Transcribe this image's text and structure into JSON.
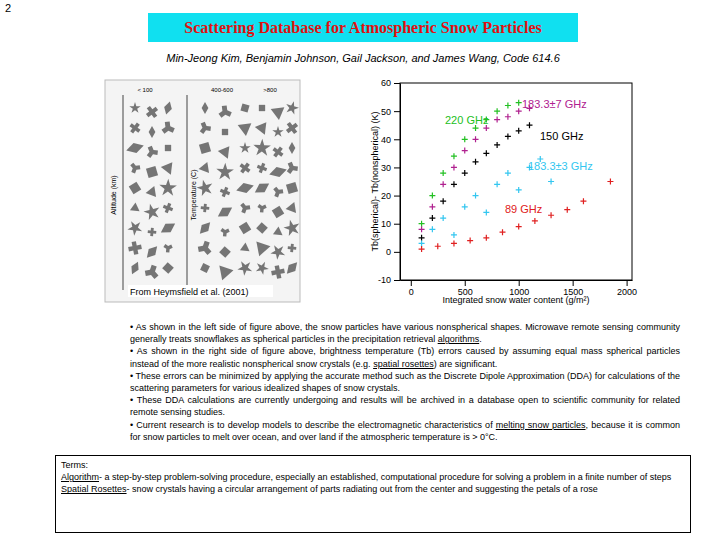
{
  "page_number": "2",
  "header": {
    "title": "Scattering Database for Atmospheric Snow Particles",
    "authors": "Min-Jeong Kim, Benjamin Johnson, Gail Jackson, and James Wang, Code 614.6"
  },
  "figure_left": {
    "column_labels": [
      "< 100",
      "400-600",
      ">800"
    ],
    "y_label": "Altitude (km)",
    "y2_label": "Temperature (C)",
    "caption": "From Heymsfield et al. (2001)"
  },
  "chart_data": {
    "type": "scatter",
    "x_label": "Integrated snow water content (g/m²)",
    "y_label": "Tb(spherical)- Tb(nonspherical) (K)",
    "xlim": [
      -100,
      2050
    ],
    "ylim": [
      -10,
      60
    ],
    "xticks": [
      0,
      500,
      1000,
      1500,
      2000
    ],
    "yticks": [
      -10,
      0,
      10,
      20,
      30,
      40,
      50,
      60
    ],
    "grid": false,
    "marker": "plus",
    "series": [
      {
        "name": "220 GHz",
        "color": "#22c022",
        "x": [
          100,
          200,
          300,
          400,
          500,
          600,
          700,
          800,
          900,
          1000
        ],
        "values": [
          10,
          20,
          28,
          34,
          40,
          44,
          47,
          50,
          52,
          53
        ]
      },
      {
        "name": "183.3±7 GHz",
        "color": "#b0208f",
        "x": [
          100,
          200,
          300,
          400,
          500,
          600,
          700,
          800,
          900,
          1000,
          1100
        ],
        "values": [
          8,
          16,
          24,
          30,
          36,
          40,
          44,
          47,
          48,
          50,
          51
        ]
      },
      {
        "name": "150 GHz",
        "color": "#000000",
        "x": [
          100,
          200,
          300,
          400,
          500,
          600,
          700,
          800,
          900,
          1000,
          1100
        ],
        "values": [
          5,
          12,
          18,
          24,
          28,
          32,
          35,
          38,
          41,
          43,
          45
        ]
      },
      {
        "name": "183.3±3 GHz",
        "color": "#33c6f0",
        "x": [
          100,
          200,
          300,
          400,
          500,
          600,
          700,
          800,
          900,
          1000,
          1100,
          1200,
          1300
        ],
        "values": [
          3,
          8,
          12,
          6,
          16,
          20,
          14,
          24,
          28,
          22,
          30,
          33,
          25
        ]
      },
      {
        "name": "89 GHz",
        "color": "#e02020",
        "x": [
          100,
          250,
          400,
          550,
          700,
          850,
          1000,
          1150,
          1300,
          1450,
          1600,
          1850
        ],
        "values": [
          1,
          2,
          3,
          4,
          5,
          7,
          9,
          11,
          13,
          15,
          18,
          25
        ]
      }
    ]
  },
  "bullets": [
    [
      "• As shown in the left side of figure above, the snow particles have various nonspherical shapes. Microwave remote sensing community generally treats snowflakes as spherical particles in the precipitation retrieval ",
      {
        "underlined": "algorithms"
      },
      "."
    ],
    [
      "• As shown in the right side of figure above, brightness temperature (Tb) errors caused by assuming equal mass spherical particles instead of the more realistic nonspherical snow crystals (e.g. ",
      {
        "underlined": "spatial rosettes"
      },
      ") are significant."
    ],
    [
      "• These errors can be minimized by applying the accurate method such as the Discrete Dipole Approximation (DDA) for calculations of the scattering parameters for various idealized shapes of snow crystals."
    ],
    [
      "• These DDA calculations are currently undergoing and results will be archived in a database open to scientific community for related remote sensing studies."
    ],
    [
      "• Current research is to develop models to describe the electromagnetic characteristics of ",
      {
        "underlined": "melting snow particles"
      },
      ", because it is common for snow particles to melt over ocean, and over land if the atmospheric temperature is > 0°C."
    ]
  ],
  "terms": {
    "heading": "Terms:",
    "items": [
      {
        "term": "Algorithm",
        "definition": "- a step-by-step problem-solving procedure, especially an established, computational procedure for solving a problem in a finite number of steps"
      },
      {
        "term": "Spatial Rosettes",
        "definition": "- snow crystals having a circular arrangement of parts radiating out from the center and suggesting the petals of a rose"
      }
    ]
  }
}
